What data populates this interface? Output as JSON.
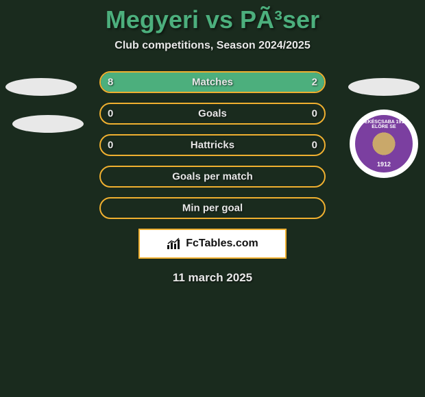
{
  "title": "Megyeri vs PÃ³ser",
  "subtitle": "Club competitions, Season 2024/2025",
  "date": "11 march 2025",
  "footer_brand": "FcTables.com",
  "colors": {
    "background": "#1a2b1e",
    "accent_green": "#4caf7d",
    "border_gold": "#f0b030",
    "text_light": "#e8e8e8",
    "badge_purple": "#7b3fa0",
    "badge_gold": "#c9a86a"
  },
  "club_badge": {
    "top_text": "BÉKÉSCSABA 1912 ELŐRE SE",
    "year": "1912"
  },
  "bars": [
    {
      "label": "Matches",
      "left": "8",
      "right": "2",
      "left_pct": 80,
      "right_pct": 20
    },
    {
      "label": "Goals",
      "left": "0",
      "right": "0",
      "left_pct": 0,
      "right_pct": 0
    },
    {
      "label": "Hattricks",
      "left": "0",
      "right": "0",
      "left_pct": 0,
      "right_pct": 0
    },
    {
      "label": "Goals per match",
      "left": "",
      "right": "",
      "left_pct": 0,
      "right_pct": 0
    },
    {
      "label": "Min per goal",
      "left": "",
      "right": "",
      "left_pct": 0,
      "right_pct": 0
    }
  ]
}
